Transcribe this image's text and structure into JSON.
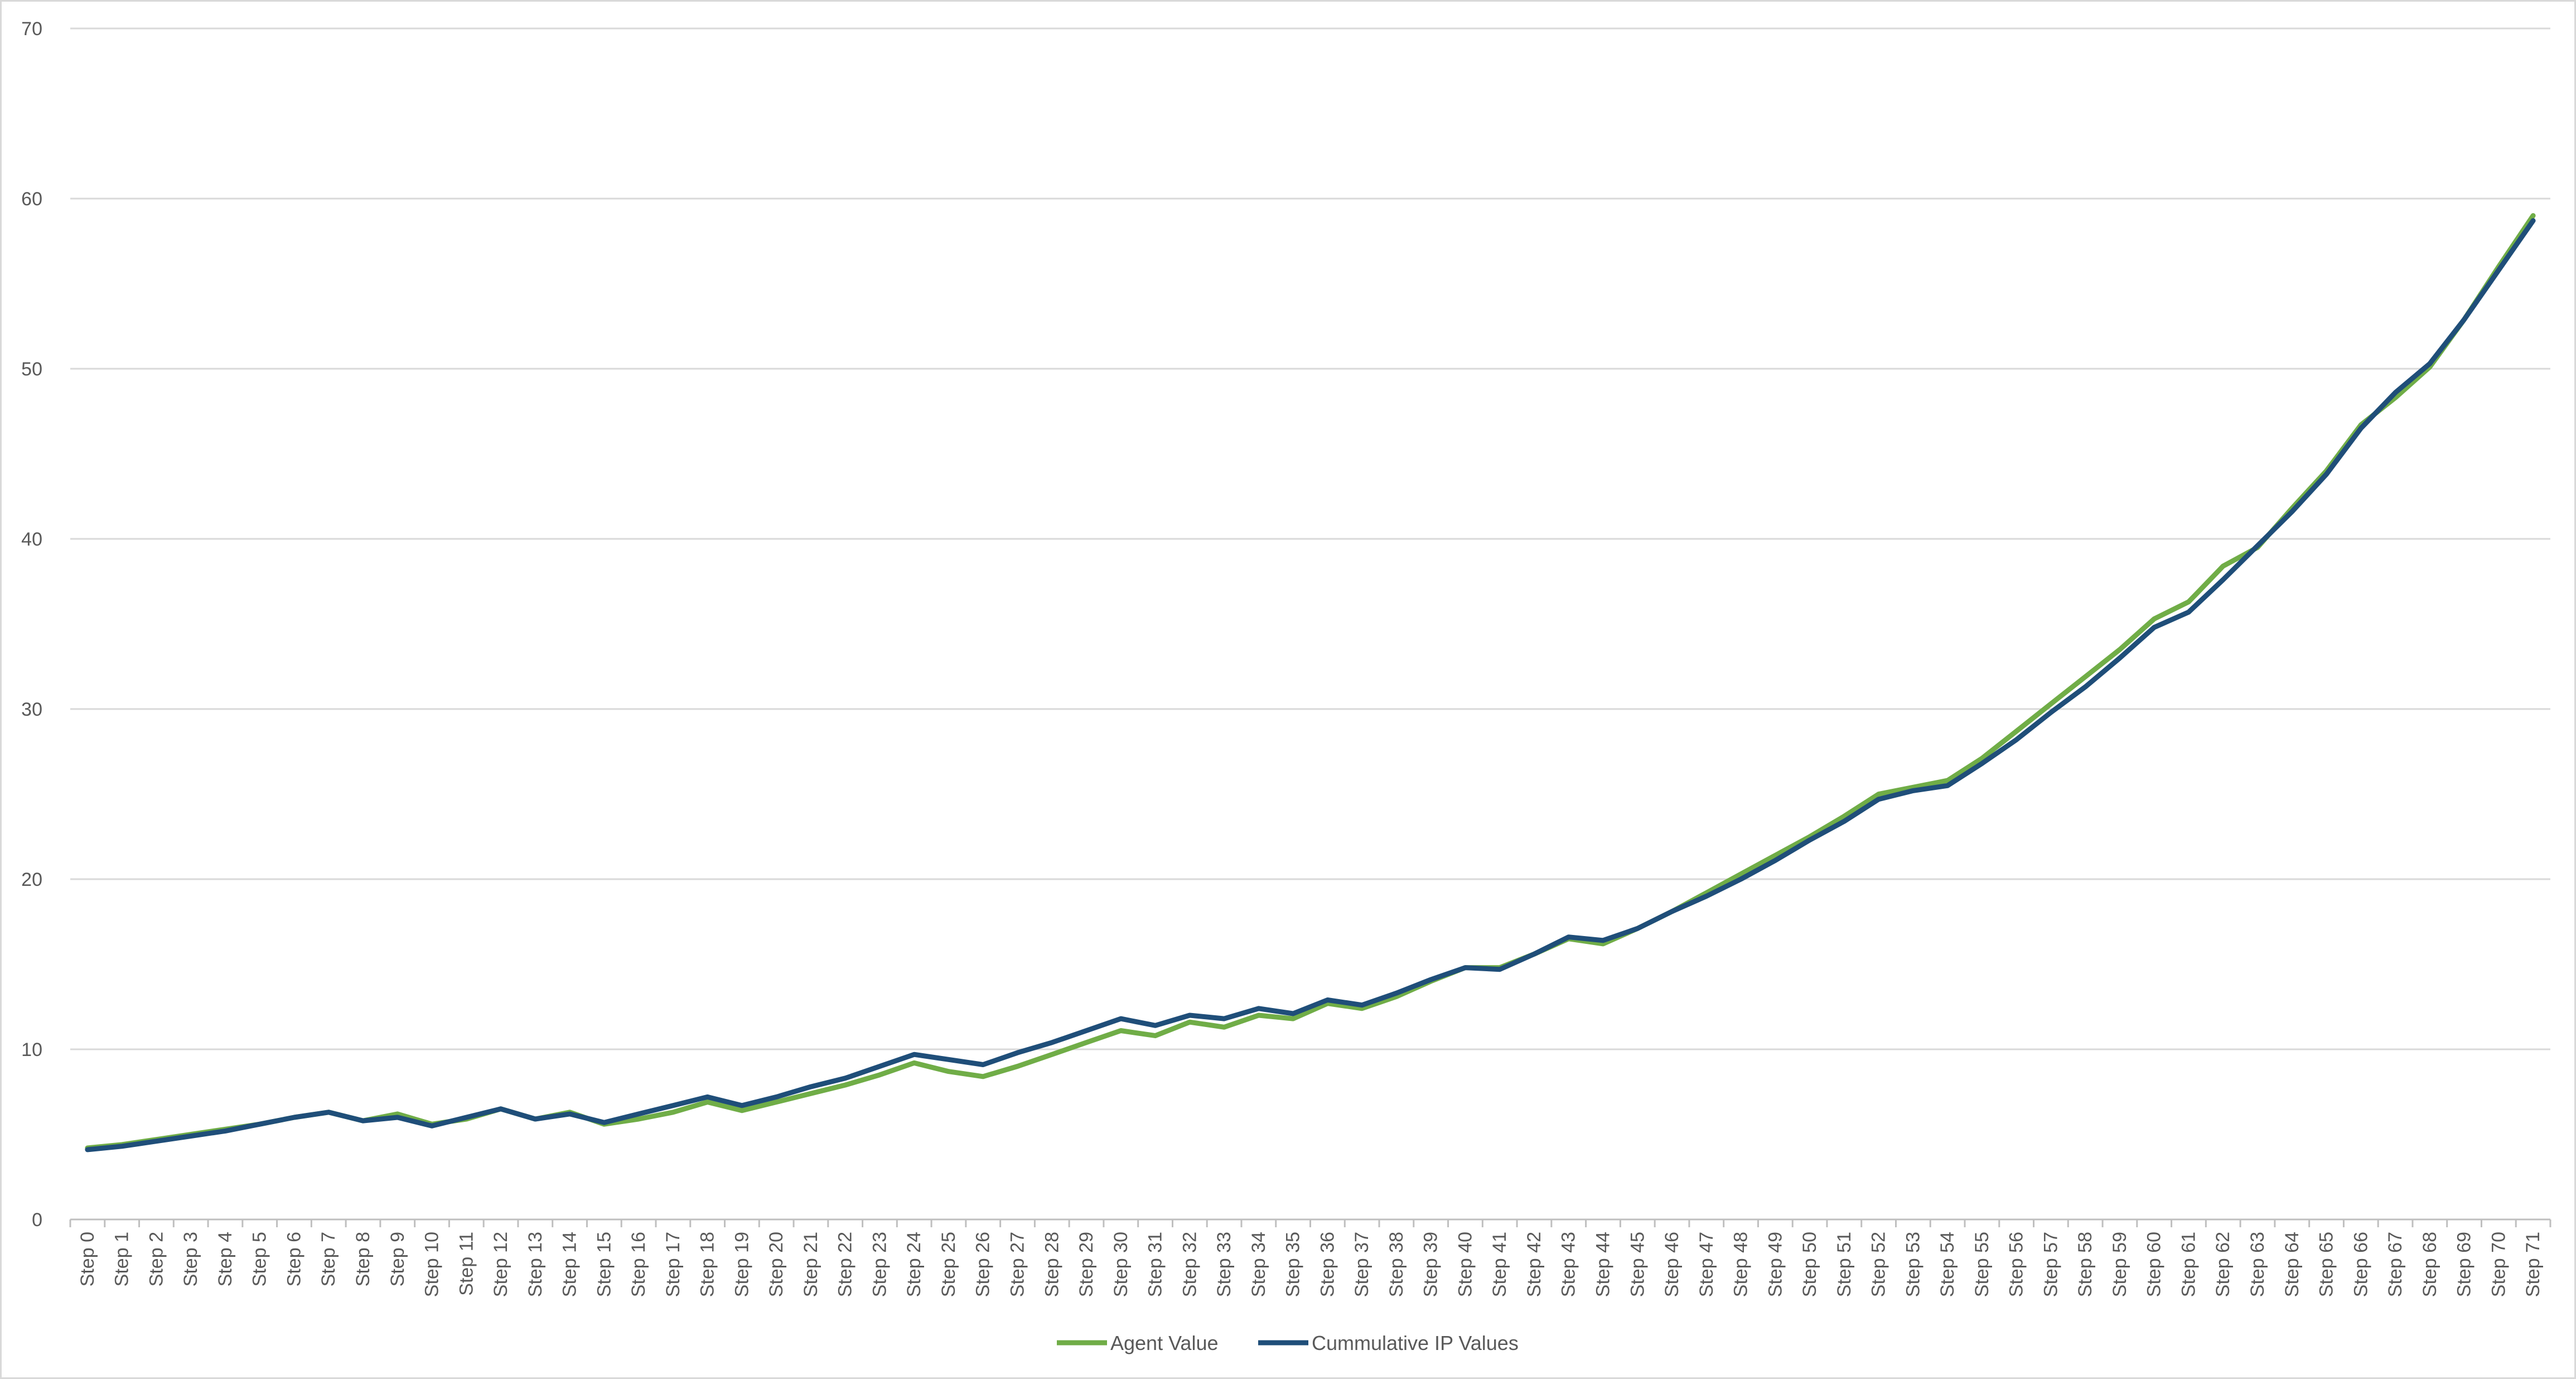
{
  "chart_data": {
    "type": "line",
    "title": "",
    "xlabel": "",
    "ylabel": "",
    "ylim": [
      0,
      70
    ],
    "yticks": [
      0,
      10,
      20,
      30,
      40,
      50,
      60,
      70
    ],
    "grid": true,
    "legend_position": "bottom",
    "categories": [
      "Step 0",
      "Step 1",
      "Step 2",
      "Step 3",
      "Step 4",
      "Step 5",
      "Step 6",
      "Step 7",
      "Step 8",
      "Step 9",
      "Step 10",
      "Step 11",
      "Step 12",
      "Step 13",
      "Step 14",
      "Step 15",
      "Step 16",
      "Step 17",
      "Step 18",
      "Step 19",
      "Step 20",
      "Step 21",
      "Step 22",
      "Step 23",
      "Step 24",
      "Step 25",
      "Step 26",
      "Step 27",
      "Step 28",
      "Step 29",
      "Step 30",
      "Step 31",
      "Step 32",
      "Step 33",
      "Step 34",
      "Step 35",
      "Step 36",
      "Step 37",
      "Step 38",
      "Step 39",
      "Step 40",
      "Step 41",
      "Step 42",
      "Step 43",
      "Step 44",
      "Step 45",
      "Step 46",
      "Step 47",
      "Step 48",
      "Step 49",
      "Step 50",
      "Step 51",
      "Step 52",
      "Step 53",
      "Step 54",
      "Step 55",
      "Step 56",
      "Step 57",
      "Step 58",
      "Step 59",
      "Step 60",
      "Step 61",
      "Step 62",
      "Step 63",
      "Step 64",
      "Step 65",
      "Step 66",
      "Step 67",
      "Step 68",
      "Step 69",
      "Step 70",
      "Step 71"
    ],
    "series": [
      {
        "name": "Agent Value",
        "color": "#70ad47",
        "values": [
          4.2,
          4.4,
          4.7,
          5.0,
          5.3,
          5.6,
          6.0,
          6.3,
          5.8,
          6.2,
          5.6,
          5.9,
          6.5,
          5.9,
          6.3,
          5.6,
          5.9,
          6.3,
          6.9,
          6.4,
          6.9,
          7.4,
          7.9,
          8.5,
          9.2,
          8.7,
          8.4,
          9.0,
          9.7,
          10.4,
          11.1,
          10.8,
          11.6,
          11.3,
          12.0,
          11.8,
          12.7,
          12.4,
          13.1,
          14.0,
          14.8,
          14.8,
          15.6,
          16.5,
          16.2,
          17.1,
          18.1,
          19.2,
          20.3,
          21.4,
          22.5,
          23.7,
          25.0,
          25.4,
          25.8,
          27.1,
          28.7,
          30.3,
          31.9,
          33.5,
          35.3,
          36.3,
          38.4,
          39.5,
          41.8,
          44.0,
          46.7,
          48.3,
          50.1,
          52.9,
          56.0,
          59.0
        ]
      },
      {
        "name": "Cummulative IP Values",
        "color": "#1f4e79",
        "values": [
          4.1,
          4.3,
          4.6,
          4.9,
          5.2,
          5.6,
          6.0,
          6.3,
          5.8,
          6.0,
          5.5,
          6.0,
          6.5,
          5.9,
          6.2,
          5.7,
          6.2,
          6.7,
          7.2,
          6.7,
          7.2,
          7.8,
          8.3,
          9.0,
          9.7,
          9.4,
          9.1,
          9.8,
          10.4,
          11.1,
          11.8,
          11.4,
          12.0,
          11.8,
          12.4,
          12.1,
          12.9,
          12.6,
          13.3,
          14.1,
          14.8,
          14.7,
          15.6,
          16.6,
          16.4,
          17.1,
          18.1,
          19.0,
          20.0,
          21.1,
          22.3,
          23.4,
          24.7,
          25.2,
          25.5,
          26.8,
          28.2,
          29.8,
          31.3,
          33.0,
          34.8,
          35.7,
          37.6,
          39.6,
          41.6,
          43.8,
          46.5,
          48.6,
          50.3,
          52.9,
          55.8,
          58.7
        ]
      }
    ]
  }
}
